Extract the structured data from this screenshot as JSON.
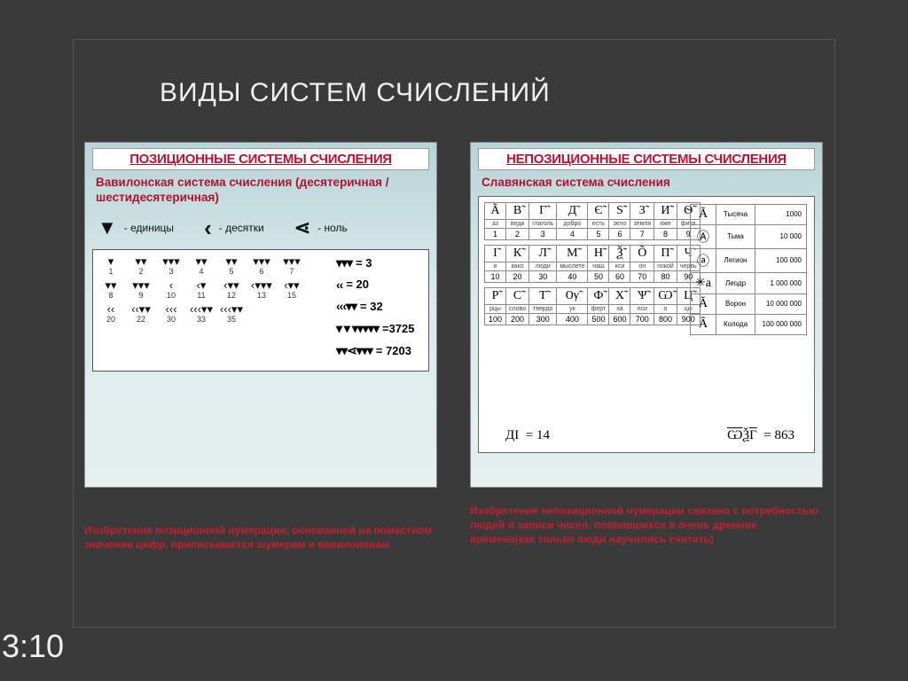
{
  "colors": {
    "page_bg": "#3a3a3a",
    "panel_bg_top": "#b8d4d8",
    "panel_bg_bottom": "#e8f0f0",
    "heading_red": "#c01030",
    "caption_red": "#c02030",
    "title_white": "#f0f0f0"
  },
  "title": "ВИДЫ СИСТЕМ СЧИСЛЕНИЙ",
  "timestamp": "3:10",
  "left_panel": {
    "header": "ПОЗИЦИОННЫЕ СИСТЕМЫ СЧИСЛЕНИЯ",
    "subtitle": "Вавилонская система счисления (десятеричная / шестидесятеричная)",
    "legend": {
      "unit_symbol": "▼",
      "unit_label": "- единицы",
      "ten_symbol": "‹",
      "ten_label": "- десятки",
      "zero_symbol": "⋖",
      "zero_label": "- ноль"
    },
    "grid_rows": [
      {
        "glyphs": [
          "▾",
          "▾▾",
          "▾▾▾",
          "▾▾",
          "▾▾",
          "▾▾▾",
          "▾▾▾"
        ],
        "nums": [
          "1",
          "2",
          "3",
          "4",
          "5",
          "6",
          "7"
        ]
      },
      {
        "glyphs": [
          "▾▾",
          "▾▾▾",
          "‹",
          "‹▾",
          "‹▾▾",
          "‹▾▾▾",
          "‹▾▾"
        ],
        "nums": [
          "8",
          "9",
          "10",
          "11",
          "12",
          "13",
          "15"
        ]
      },
      {
        "glyphs": [
          "‹‹",
          "‹‹▾▾",
          "‹‹‹",
          "‹‹‹▾▾",
          "‹‹‹▾▾",
          "",
          ""
        ],
        "nums": [
          "20",
          "22",
          "30",
          "33",
          "35",
          "",
          ""
        ]
      }
    ],
    "equations": [
      {
        "glyphs": "▾▾▾",
        "value": "= 3"
      },
      {
        "glyphs": "‹‹",
        "value": "= 20"
      },
      {
        "glyphs": "‹‹‹▾▾",
        "value": "= 32"
      },
      {
        "glyphs": "▾ ▾ ▾▾▾▾▾",
        "value": "=3725"
      },
      {
        "glyphs": "▾▾⋖▾▾▾",
        "value": "= 7203"
      }
    ],
    "caption": "Изобретение позиционной нумерации, основанной на поместном значении цифр, приписывается шумерам и вавилонянам"
  },
  "right_panel": {
    "header": "НЕПОЗИЦИОННЫЕ СИСТЕМЫ СЧИСЛЕНИЯ",
    "subtitle": "Славянская система счисления",
    "letter_rows": [
      {
        "glyphs": [
          "Ã",
          "В̃",
          "Г̃",
          "Д̃",
          "Є̃",
          "Ѕ̃",
          "З̃",
          "И̃",
          "Ѳ̃"
        ],
        "names": [
          "аз",
          "веди",
          "глаголь",
          "добро",
          "есть",
          "зело",
          "земля",
          "иже",
          "фита"
        ],
        "vals": [
          "1",
          "2",
          "3",
          "4",
          "5",
          "6",
          "7",
          "8",
          "9"
        ]
      },
      {
        "glyphs": [
          "І̃",
          "К̃",
          "Л̃",
          "М̃",
          "Н̃",
          "Ѯ̃",
          "Õ",
          "П̃",
          "Ч̃"
        ],
        "names": [
          "и",
          "како",
          "люди",
          "мыслете",
          "наш",
          "кси",
          "он",
          "покой",
          "червь"
        ],
        "vals": [
          "10",
          "20",
          "30",
          "40",
          "50",
          "60",
          "70",
          "80",
          "90"
        ]
      },
      {
        "glyphs": [
          "Р̃",
          "С̃",
          "Т̃",
          "Ѹ̃",
          "Ф̃",
          "Х̃",
          "Ѱ̃",
          "Ѡ̃",
          "Ц̃"
        ],
        "names": [
          "рцы",
          "слово",
          "твердо",
          "ук",
          "ферт",
          "ха",
          "пси",
          "о",
          "цы"
        ],
        "vals": [
          "100",
          "200",
          "300",
          "400",
          "500",
          "600",
          "700",
          "800",
          "900"
        ]
      }
    ],
    "big_units": [
      {
        "glyph": "Ã",
        "name": "Тысяча",
        "value": "1000"
      },
      {
        "glyph": "Ⓐ",
        "name": "Тьма",
        "value": "10 000"
      },
      {
        "glyph": "ⓐ",
        "name": "Легион",
        "value": "100 000"
      },
      {
        "glyph": "✳а",
        "name": "Леодр",
        "value": "1 000 000"
      },
      {
        "glyph": "Ă",
        "name": "Ворон",
        "value": "10 000 000"
      },
      {
        "glyph": "Â",
        "name": "Колода",
        "value": "100 000 000"
      }
    ],
    "eq1": {
      "expr": "ДІ",
      "value": "=   14"
    },
    "eq2": {
      "expr": "ѠѮГ",
      "value": "=   863"
    },
    "caption": "Изобретение непозиционной нумерации связано с потребностью людей в записи чисел, появившихся в очень древние времена(как только люди научились считать)"
  }
}
